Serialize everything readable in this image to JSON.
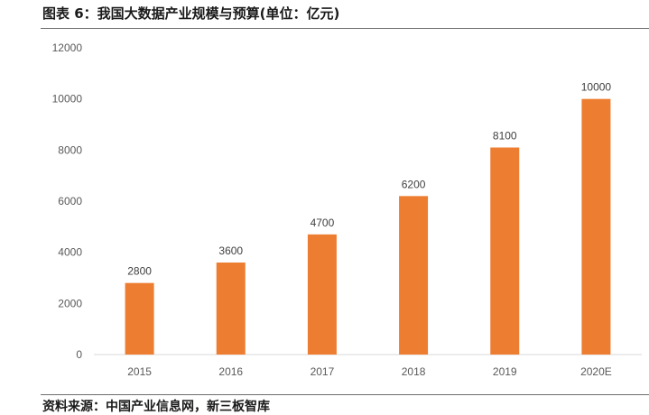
{
  "header": {
    "title": "图表 6：我国大数据产业规模与预算(单位：亿元)"
  },
  "footer": {
    "source": "资料来源：中国产业信息网，新三板智库"
  },
  "chart_data": {
    "type": "bar",
    "title": "",
    "xlabel": "",
    "ylabel": "",
    "categories": [
      "2015",
      "2016",
      "2017",
      "2018",
      "2019",
      "2020E"
    ],
    "values": [
      2800,
      3600,
      4700,
      6200,
      8100,
      10000
    ],
    "data_labels": [
      "2800",
      "3600",
      "4700",
      "6200",
      "8100",
      "10000"
    ],
    "yticks": [
      0,
      2000,
      4000,
      6000,
      8000,
      10000,
      12000
    ],
    "ylim": [
      0,
      12000
    ],
    "grid": false,
    "legend": "none",
    "bar_color": "#ED7D31",
    "axis_color": "#D9D9D9"
  }
}
